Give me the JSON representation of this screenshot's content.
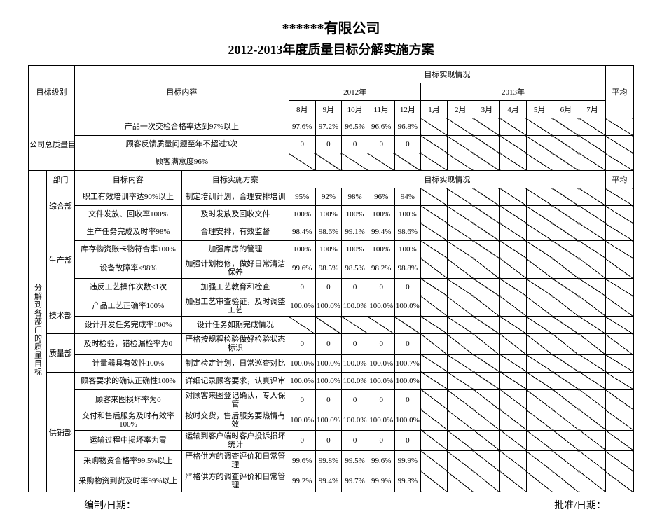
{
  "company": "******有限公司",
  "title": "2012-2013年度质量目标分解实施方案",
  "header": {
    "level": "目标级别",
    "content": "目标内容",
    "actual": "目标实现情况",
    "plan": "目标实施方案",
    "dept": "部门",
    "avg": "平均",
    "y2012": "2012年",
    "y2013": "2013年",
    "months": [
      "8月",
      "9月",
      "10月",
      "11月",
      "12月",
      "1月",
      "2月",
      "3月",
      "4月",
      "5月",
      "6月",
      "7月"
    ]
  },
  "company_level_label": "公司总质量目标",
  "dept_level_label": "分解到各部门的质量目标",
  "company_targets": [
    {
      "content": "产品一次交检合格率达到97%以上",
      "vals": [
        "97.6%",
        "97.2%",
        "96.5%",
        "96.6%",
        "96.8%"
      ]
    },
    {
      "content": "顾客反馈质量问题至年不超过3次",
      "vals": [
        "0",
        "0",
        "0",
        "0",
        "0"
      ]
    },
    {
      "content": "顾客满意度96%",
      "vals": []
    }
  ],
  "depts": [
    {
      "name": "综合部",
      "rows": [
        {
          "content": "职工有效培训率达90%以上",
          "plan": "制定培训计划，合理安排培训",
          "vals": [
            "95%",
            "92%",
            "98%",
            "96%",
            "94%"
          ]
        },
        {
          "content": "文件发放、回收率100%",
          "plan": "及时发放及回收文件",
          "vals": [
            "100%",
            "100%",
            "100%",
            "100%",
            "100%"
          ]
        }
      ]
    },
    {
      "name": "生产部",
      "rows": [
        {
          "content": "生产任务完成及时率98%",
          "plan": "合理安排，有效监督",
          "vals": [
            "98.4%",
            "98.6%",
            "99.1%",
            "99.4%",
            "98.6%"
          ]
        },
        {
          "content": "库存物资账卡物符合率100%",
          "plan": "加强库房的管理",
          "vals": [
            "100%",
            "100%",
            "100%",
            "100%",
            "100%"
          ]
        },
        {
          "content": "设备故障率≤98%",
          "plan": "加强计划检修，做好日常清洁保养",
          "vals": [
            "99.6%",
            "98.5%",
            "98.5%",
            "98.2%",
            "98.8%"
          ]
        },
        {
          "content": "违反工艺操作次数≤1次",
          "plan": "加强工艺教育和检查",
          "vals": [
            "0",
            "0",
            "0",
            "0",
            "0"
          ]
        }
      ]
    },
    {
      "name": "技术部",
      "rows": [
        {
          "content": "产品工艺正确率100%",
          "plan": "加强工艺审查验证，及时调整工艺",
          "vals": [
            "100.0%",
            "100.0%",
            "100.0%",
            "100.0%",
            "100.0%"
          ]
        },
        {
          "content": "设计开发任务完成率100%",
          "plan": "设计任务如期完成情况",
          "vals": []
        }
      ]
    },
    {
      "name": "质量部",
      "rows": [
        {
          "content": "及时检验，错检漏检率为0",
          "plan": "严格按规程检验做好检验状态标识",
          "vals": [
            "0",
            "0",
            "0",
            "0",
            "0"
          ]
        },
        {
          "content": "计量器具有效性100%",
          "plan": "制定检定计划，日常巡查对比",
          "vals": [
            "100.0%",
            "100.0%",
            "100.0%",
            "100.0%",
            "100.7%"
          ]
        }
      ]
    },
    {
      "name": "供销部",
      "rows": [
        {
          "content": "顾客要求的确认正确性100%",
          "plan": "详细记录顾客要求，认真评审",
          "vals": [
            "100.0%",
            "100.0%",
            "100.0%",
            "100.0%",
            "100.0%"
          ]
        },
        {
          "content": "顾客来图损坏率为0",
          "plan": "对顾客来图登记确认，专人保管",
          "vals": [
            "0",
            "0",
            "0",
            "0",
            "0"
          ]
        },
        {
          "content": "交付和售后服务及时有效率100%",
          "plan": "按时交货，售后服务要热情有效",
          "vals": [
            "100.0%",
            "100.0%",
            "100.0%",
            "100.0%",
            "100.0%"
          ]
        },
        {
          "content": "运输过程中损坏率为零",
          "plan": "运输到客户端时客户投诉损坏统计",
          "vals": [
            "0",
            "0",
            "0",
            "0",
            "0"
          ]
        },
        {
          "content": "采购物资合格率99.5%以上",
          "plan": "严格供方的调查评价和日常管理",
          "vals": [
            "99.6%",
            "99.8%",
            "99.5%",
            "99.6%",
            "99.9%"
          ]
        },
        {
          "content": "采购物资到货及时率99%以上",
          "plan": "严格供方的调查评价和日常管理",
          "vals": [
            "99.2%",
            "99.4%",
            "99.7%",
            "99.9%",
            "99.3%"
          ]
        }
      ]
    }
  ],
  "footer": {
    "left": "编制/日期：",
    "right": "批准/日期："
  }
}
